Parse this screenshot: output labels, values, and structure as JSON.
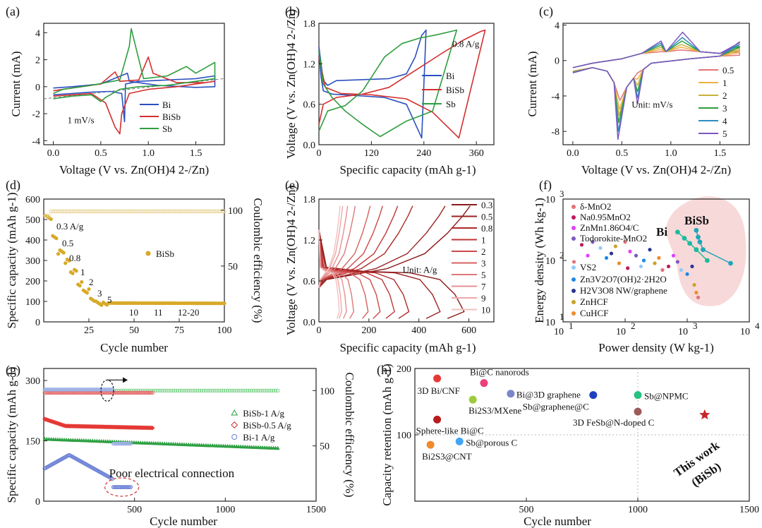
{
  "panels": {
    "a": {
      "label": "(a)"
    },
    "b": {
      "label": "(b)"
    },
    "c": {
      "label": "(c)"
    },
    "d": {
      "label": "(d)"
    },
    "e": {
      "label": "(e)"
    },
    "f": {
      "label": "(f)"
    },
    "g": {
      "label": "(g)"
    },
    "h": {
      "label": "(h)"
    }
  },
  "chart_data": [
    {
      "id": "a",
      "type": "line",
      "xlabel": "Voltage (V vs. Zn(OH)4 2-/Zn)",
      "ylabel": "Current (mA)",
      "xlim": [
        -0.1,
        1.8
      ],
      "ylim": [
        -4.3,
        4.7
      ],
      "xticks": [
        "0.0",
        "0.5",
        "1.0",
        "1.5"
      ],
      "yticks": [
        "-4",
        "-2",
        "0",
        "2",
        "4"
      ],
      "annotation": "1 mV/s",
      "series": [
        {
          "name": "Bi",
          "color": "#2b4fbf",
          "x": [
            0.0,
            0.2,
            0.4,
            0.6,
            0.72,
            0.75,
            0.76,
            0.9,
            1.2,
            1.5,
            1.7,
            1.7,
            1.5,
            1.1,
            0.8,
            0.78,
            0.5,
            0.2,
            0.0
          ],
          "y": [
            -0.6,
            -0.5,
            -0.4,
            -0.35,
            -0.5,
            -2.6,
            0.2,
            0.4,
            0.5,
            0.6,
            0.8,
            0.0,
            -0.05,
            0.1,
            0.4,
            1.0,
            0.2,
            0.0,
            -0.1
          ]
        },
        {
          "name": "BiSb",
          "color": "#d32f2f",
          "x": [
            0.0,
            0.2,
            0.4,
            0.55,
            0.65,
            0.7,
            0.72,
            0.8,
            1.0,
            1.3,
            1.6,
            1.7,
            1.6,
            1.3,
            1.05,
            1.0,
            0.9,
            0.7,
            0.65,
            0.5,
            0.2,
            0.0
          ],
          "y": [
            -0.7,
            -0.6,
            -0.5,
            -1.2,
            -3.0,
            -3.5,
            -2.0,
            -0.5,
            -0.2,
            0.0,
            0.3,
            0.4,
            0.3,
            0.3,
            1.0,
            2.2,
            0.5,
            0.4,
            1.1,
            0.2,
            -0.1,
            -0.3
          ]
        },
        {
          "name": "Sb",
          "color": "#2e9e3e",
          "x": [
            0.0,
            0.2,
            0.4,
            0.5,
            0.55,
            0.7,
            0.9,
            1.2,
            1.5,
            1.7,
            1.7,
            1.5,
            1.4,
            1.2,
            0.95,
            0.82,
            0.8,
            0.7,
            0.4,
            0.1,
            0.0
          ],
          "y": [
            -0.9,
            -0.7,
            -0.6,
            -1.1,
            -0.8,
            -0.2,
            0.0,
            0.1,
            0.4,
            0.6,
            1.8,
            1.0,
            1.5,
            0.8,
            0.6,
            4.3,
            3.0,
            0.5,
            0.1,
            -0.2,
            -0.5
          ]
        }
      ],
      "legend": [
        "Bi",
        "BiSb",
        "Sb"
      ]
    },
    {
      "id": "b",
      "type": "line",
      "xlabel": "Specific capacity (mAh g-1)",
      "ylabel": "Voltage (V vs. Zn(OH)4 2-/Zn)",
      "xlim": [
        0,
        400
      ],
      "ylim": [
        0,
        1.8
      ],
      "xticks": [
        "0",
        "120",
        "240",
        "360"
      ],
      "yticks": [
        "0.0",
        "0.6",
        "1.2",
        "1.8"
      ],
      "annotation": "0.8 A/g",
      "series": [
        {
          "name": "Bi",
          "color": "#2b4fbf",
          "x": [
            0,
            10,
            20,
            40,
            80,
            160,
            200,
            220,
            235,
            245,
            245,
            235,
            200,
            150,
            80,
            30,
            10,
            5,
            0
          ],
          "y": [
            1.45,
            0.95,
            0.88,
            0.95,
            0.96,
            0.98,
            1.05,
            1.3,
            1.62,
            1.7,
            1.7,
            0.1,
            0.6,
            0.7,
            0.73,
            0.75,
            0.8,
            1.0,
            1.4
          ]
        },
        {
          "name": "BiSb",
          "color": "#d32f2f",
          "x": [
            0,
            10,
            40,
            100,
            160,
            220,
            280,
            330,
            370,
            380,
            320,
            260,
            200,
            120,
            50,
            15,
            0
          ],
          "y": [
            0.3,
            0.6,
            0.7,
            0.75,
            0.85,
            1.1,
            1.35,
            1.55,
            1.68,
            1.7,
            0.1,
            0.48,
            0.68,
            0.74,
            0.76,
            0.85,
            1.3
          ]
        },
        {
          "name": "Sb",
          "color": "#2e9e3e",
          "x": [
            0,
            20,
            60,
            100,
            150,
            190,
            230,
            270,
            315,
            315,
            260,
            200,
            140,
            100,
            60,
            30,
            10,
            0
          ],
          "y": [
            0.2,
            0.5,
            0.58,
            0.8,
            1.3,
            1.5,
            1.58,
            1.63,
            1.7,
            1.7,
            0.5,
            0.35,
            0.12,
            0.3,
            0.5,
            0.7,
            0.9,
            1.4
          ]
        }
      ],
      "legend": [
        "Bi",
        "BiSb",
        "Sb"
      ]
    },
    {
      "id": "c",
      "type": "line",
      "xlabel": "Voltage (V vs. Zn(OH)4 2-/Zn)",
      "ylabel": "Current (mA)",
      "xlim": [
        -0.1,
        1.8
      ],
      "ylim": [
        -9.5,
        4.2
      ],
      "xticks": [
        "0.0",
        "0.5",
        "1.0",
        "1.5"
      ],
      "yticks": [
        "-8",
        "-4",
        "0",
        "4"
      ],
      "annotation": "Unit: mV/s",
      "series": [
        {
          "name": "0.5",
          "color": "#e57373",
          "peakRed": -4.5,
          "peakOx": 1.2
        },
        {
          "name": "1",
          "color": "#f5b041",
          "peakRed": -5.5,
          "peakOx": 1.5
        },
        {
          "name": "2",
          "color": "#c9b23a",
          "peakRed": -6.2,
          "peakOx": 1.8
        },
        {
          "name": "3",
          "color": "#2e9e3e",
          "peakRed": -7.0,
          "peakOx": 2.2
        },
        {
          "name": "4",
          "color": "#2b8fbf",
          "peakRed": -8.0,
          "peakOx": 2.6
        },
        {
          "name": "5",
          "color": "#7e57c2",
          "peakRed": -8.9,
          "peakOx": 3.2
        }
      ]
    },
    {
      "id": "d",
      "type": "scatter",
      "xlabel": "Cycle number",
      "ylabel": "Specific capacity (mAh g-1)",
      "y2label": "Coulombic efficiency (%)",
      "xlim": [
        0,
        100
      ],
      "ylim": [
        0,
        600
      ],
      "y2lim": [
        0,
        110
      ],
      "xticks": [
        "25",
        "50",
        "75",
        "100"
      ],
      "yticks": [
        "0",
        "100",
        "200",
        "300",
        "400",
        "500",
        "600"
      ],
      "y2ticks": [
        "50",
        "100"
      ],
      "legend": [
        "BiSb"
      ],
      "rate_labels": [
        "0.3 A/g",
        "0.5",
        "0.8",
        "1",
        "2",
        "3",
        "5",
        "10",
        "11",
        "12-20"
      ],
      "capacity_levels": [
        520,
        420,
        350,
        305,
        255,
        195,
        160,
        120,
        100,
        95,
        92
      ],
      "coulombic_efficiency": 99
    },
    {
      "id": "e",
      "type": "line",
      "xlabel": "Specific capacity (mAh g-1)",
      "ylabel": "Voltage (V vs. Zn(OH)4 2-/Zn)",
      "xlim": [
        0,
        700
      ],
      "ylim": [
        0,
        1.8
      ],
      "xticks": [
        "0",
        "200",
        "400",
        "600"
      ],
      "yticks": [
        "0.0",
        "0.6",
        "1.2",
        "1.8"
      ],
      "annotation": "Unit: A/g",
      "legend": [
        "0.3",
        "0.5",
        "0.8",
        "1",
        "2",
        "3",
        "5",
        "7",
        "9",
        "10"
      ],
      "capacities": [
        605,
        505,
        375,
        315,
        255,
        205,
        145,
        115,
        95,
        85
      ]
    },
    {
      "id": "f",
      "type": "scatter",
      "log": true,
      "xlabel": "Power density (W kg-1)",
      "ylabel": "Energy density (Wh kg-1)",
      "xlim": [
        10,
        10000
      ],
      "ylim": [
        10,
        1000
      ],
      "labels": {
        "bi": "Bi",
        "bisb": "BiSb"
      },
      "legend": [
        {
          "name": "δ-MnO2",
          "color": "#e57373"
        },
        {
          "name": "Na0.95MnO2",
          "color": "#c2185b"
        },
        {
          "name": "ZnMn1.86O4/C",
          "color": "#e040fb"
        },
        {
          "name": "Todorokite-MnO2",
          "color": "#7e57c2"
        },
        {
          "name": "VS2",
          "color": "#90caf9"
        },
        {
          "name": "Zn3V2O7(OH)2·2H2O",
          "color": "#1e88e5"
        },
        {
          "name": "H2V3O8 NW/graphene",
          "color": "#283593"
        },
        {
          "name": "ZnHCF",
          "color": "#c9a227"
        },
        {
          "name": "CuHCF",
          "color": "#ef8b2c"
        }
      ],
      "bi_points": [
        [
          700,
          290
        ],
        [
          900,
          230
        ],
        [
          1100,
          190
        ],
        [
          1400,
          150
        ],
        [
          2100,
          100
        ]
      ],
      "bisb_points": [
        [
          1400,
          310
        ],
        [
          1500,
          240
        ],
        [
          1600,
          200
        ],
        [
          1800,
          150
        ],
        [
          5000,
          90
        ]
      ],
      "ref_points": [
        [
          15,
          95
        ],
        [
          20,
          180
        ],
        [
          25,
          120
        ],
        [
          30,
          200
        ],
        [
          40,
          160
        ],
        [
          50,
          110
        ],
        [
          60,
          130
        ],
        [
          70,
          170
        ],
        [
          80,
          90
        ],
        [
          100,
          200
        ],
        [
          110,
          75
        ],
        [
          120,
          140
        ],
        [
          150,
          120
        ],
        [
          180,
          80
        ],
        [
          200,
          100
        ],
        [
          250,
          150
        ],
        [
          300,
          90
        ],
        [
          350,
          110
        ],
        [
          400,
          70
        ],
        [
          500,
          80
        ],
        [
          600,
          120
        ],
        [
          700,
          95
        ],
        [
          800,
          70
        ],
        [
          1000,
          60
        ],
        [
          1200,
          80
        ],
        [
          1300,
          40
        ],
        [
          1400,
          30
        ],
        [
          1500,
          25
        ]
      ]
    },
    {
      "id": "g",
      "type": "scatter",
      "xlabel": "Cycle number",
      "ylabel": "Specific capacity (mAh g-1)",
      "y2label": "Coulombic efficiency (%)",
      "xlim": [
        0,
        1500
      ],
      "ylim": [
        0,
        330
      ],
      "y2lim": [
        0,
        120
      ],
      "xticks": [
        "500",
        "1000",
        "1500"
      ],
      "yticks": [
        "0",
        "150",
        "300"
      ],
      "y2ticks": [
        "50",
        "100"
      ],
      "legend": [
        {
          "name": "BiSb-1 A/g",
          "color": "#2e9e3e",
          "marker": "triangle"
        },
        {
          "name": "BiSb-0.5 A/g",
          "color": "#d32f2f",
          "marker": "diamond"
        },
        {
          "name": "Bi-1 A/g",
          "color": "#6a7fd4",
          "marker": "circle"
        }
      ],
      "annotation": "Poor electrical connection",
      "series": [
        {
          "name": "BiSb-1 A/g",
          "capacity_start": 155,
          "capacity_end": 132,
          "cycles": 1300
        },
        {
          "name": "BiSb-0.5 A/g",
          "capacity_start": 205,
          "capacity_end": 185,
          "cycles": 600
        },
        {
          "name": "Bi-1 A/g",
          "capacity_start": 80,
          "capacity_peak": 115,
          "capacity_end": 35,
          "cycles": 480
        }
      ]
    },
    {
      "id": "h",
      "type": "scatter",
      "xlabel": "Cycle number",
      "ylabel": "Capacity retention (mAh g-1)",
      "xlim": [
        0,
        1500
      ],
      "ylim": [
        0,
        200
      ],
      "xticks": [
        "500",
        "1000",
        "1500"
      ],
      "yticks": [
        "100",
        "200"
      ],
      "points": [
        {
          "name": "3D Bi/CNF",
          "x": 100,
          "y": 185,
          "color": "#e53935"
        },
        {
          "name": "Bi@C nanorods",
          "x": 310,
          "y": 178,
          "color": "#ec407a"
        },
        {
          "name": "Bi2S3/MXene",
          "x": 260,
          "y": 153,
          "color": "#9ccc3a"
        },
        {
          "name": "Bi@3D graphene",
          "x": 430,
          "y": 162,
          "color": "#7986cb"
        },
        {
          "name": "Sb@graphene@C",
          "x": 800,
          "y": 160,
          "color": "#1e3fbf"
        },
        {
          "name": "Sb@NPMC",
          "x": 1000,
          "y": 160,
          "color": "#26c281"
        },
        {
          "name": "3D FeSb@N-doped C",
          "x": 1000,
          "y": 135,
          "color": "#9e5a5a"
        },
        {
          "name": "Sphere-like Bi@C",
          "x": 100,
          "y": 123,
          "color": "#b71c1c"
        },
        {
          "name": "Sb@porous C",
          "x": 200,
          "y": 90,
          "color": "#42a5f5"
        },
        {
          "name": "Bi2S3@CNT",
          "x": 70,
          "y": 85,
          "color": "#ef8b2c"
        }
      ],
      "this_work": {
        "x": 1300,
        "y": 130,
        "label": "This work",
        "sublabel": "(BiSb)",
        "color": "#c62828"
      }
    }
  ]
}
